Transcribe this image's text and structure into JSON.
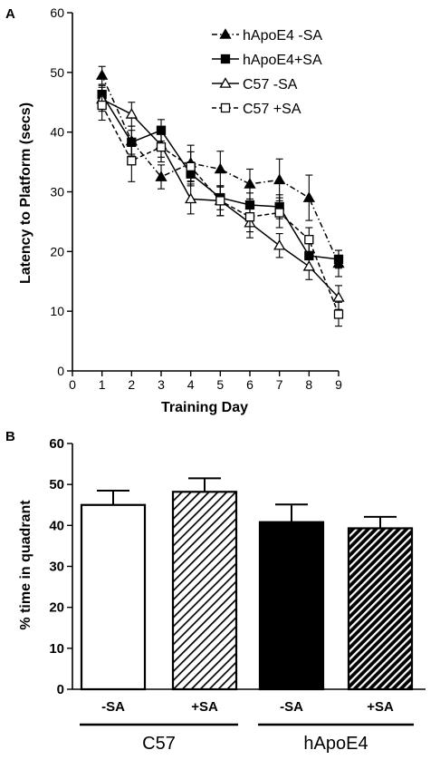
{
  "chart_data": [
    {
      "panel": "A",
      "type": "line",
      "xlabel": "Training Day",
      "ylabel": "Latency to Platform (secs)",
      "xlim": [
        0,
        9
      ],
      "ylim": [
        0,
        60
      ],
      "x_ticks": [
        0,
        1,
        2,
        3,
        4,
        5,
        6,
        7,
        8,
        9
      ],
      "y_ticks": [
        0,
        10,
        20,
        30,
        40,
        50,
        60
      ],
      "legend_position": "top-right",
      "grid": false,
      "x": [
        1,
        2,
        3,
        4,
        5,
        6,
        7,
        8,
        9
      ],
      "series": [
        {
          "name": "hApoE4 -SA",
          "marker": "filled-triangle",
          "line": "dash-dot",
          "values": [
            49.5,
            38.5,
            32.5,
            34.8,
            33.8,
            31.3,
            32.0,
            29.0,
            18.0
          ],
          "errors": [
            1.5,
            2.5,
            2.0,
            3.0,
            3.0,
            2.5,
            3.5,
            3.8,
            2.2
          ]
        },
        {
          "name": "hApoE4+SA",
          "marker": "filled-square",
          "line": "solid",
          "values": [
            46.3,
            38.3,
            40.3,
            33.0,
            29.0,
            27.8,
            27.5,
            19.3,
            18.7
          ],
          "errors": [
            1.5,
            2.0,
            1.8,
            2.0,
            2.0,
            2.0,
            2.0,
            2.0,
            1.5
          ]
        },
        {
          "name": "C57 -SA",
          "marker": "open-triangle",
          "line": "solid",
          "values": [
            45.5,
            43.0,
            37.8,
            28.8,
            28.5,
            24.8,
            21.0,
            17.5,
            12.3
          ],
          "errors": [
            2.0,
            2.0,
            2.0,
            2.5,
            2.5,
            2.5,
            2.0,
            2.2,
            2.0
          ]
        },
        {
          "name": "C57 +SA",
          "marker": "open-square",
          "line": "dashed",
          "values": [
            44.5,
            35.2,
            37.5,
            34.2,
            28.5,
            25.8,
            26.5,
            22.0,
            9.5
          ],
          "errors": [
            2.5,
            3.5,
            2.5,
            2.5,
            2.5,
            2.5,
            2.5,
            2.0,
            2.0
          ]
        }
      ]
    },
    {
      "panel": "B",
      "type": "bar",
      "ylabel": "% time in quadrant",
      "ylim": [
        0,
        60
      ],
      "y_ticks": [
        0,
        10,
        20,
        30,
        40,
        50,
        60
      ],
      "categories": [
        "-SA",
        "+SA",
        "-SA",
        "+SA"
      ],
      "groups": [
        {
          "label": "C57",
          "categories": [
            0,
            1
          ]
        },
        {
          "label": "hApoE4",
          "categories": [
            2,
            3
          ]
        }
      ],
      "values": [
        45.0,
        48.2,
        40.8,
        39.3
      ],
      "errors": [
        3.5,
        3.3,
        4.3,
        2.8
      ],
      "fills": [
        "open",
        "hatched",
        "solid-black",
        "hatched-dense"
      ],
      "colors": {
        "bar_edge": "#000000",
        "solid": "#000000"
      }
    }
  ]
}
